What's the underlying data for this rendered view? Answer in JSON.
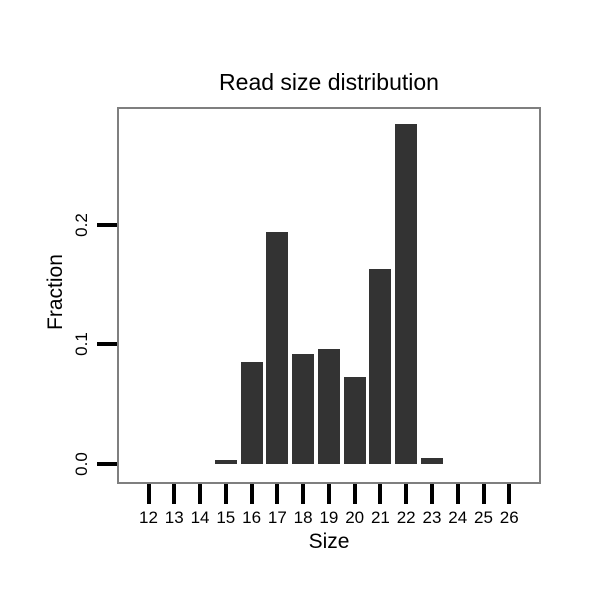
{
  "chart_data": {
    "type": "bar",
    "title": "Read size distribution",
    "xlabel": "Size",
    "ylabel": "Fraction",
    "categories": [
      12,
      13,
      14,
      15,
      16,
      17,
      18,
      19,
      20,
      21,
      22,
      23,
      24,
      25,
      26
    ],
    "values": [
      0,
      0,
      0,
      0.003,
      0.085,
      0.194,
      0.092,
      0.096,
      0.073,
      0.163,
      0.284,
      0.005,
      0,
      0,
      0
    ],
    "y_ticks": [
      0.0,
      0.1,
      0.2
    ],
    "y_tick_labels": [
      "0.0",
      "0.1",
      "0.2"
    ],
    "ylim": [
      -0.017,
      0.298
    ],
    "minor_h_gridlines": [
      0.05,
      0.15,
      0.25
    ],
    "minor_v_gridlines_at_half_steps": true,
    "grid": "minor-only",
    "legend": "none",
    "bar_color": "#333333",
    "panel_border_color": "#7f7f7f",
    "gridline_color": "#f2f2f2",
    "tick_color": "#000000",
    "text_color": "#000000",
    "background_color": "#ffffff"
  }
}
